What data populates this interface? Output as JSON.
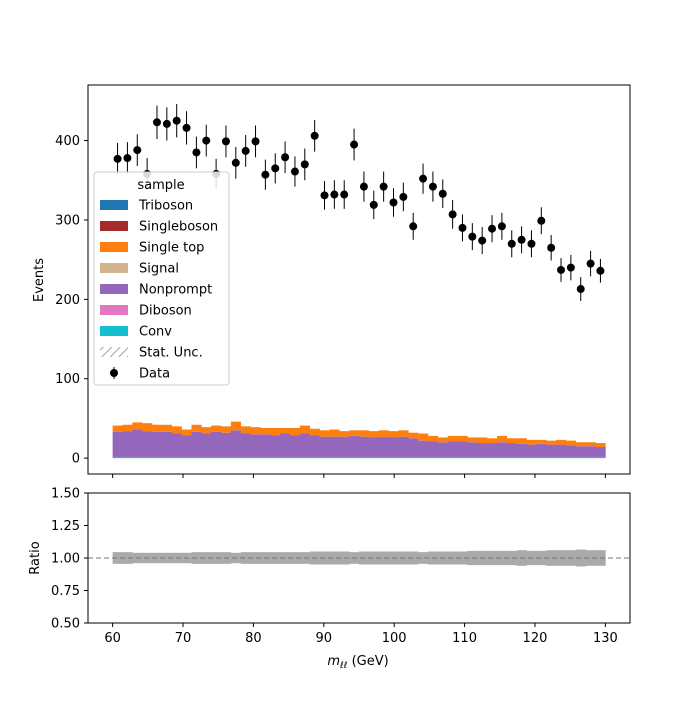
{
  "chart_data": {
    "type": "bar",
    "x_label_text": "(GeV)",
    "ylabel": "Events",
    "ratio_ylabel": "Ratio",
    "xlim": [
      56.5,
      133.5
    ],
    "ylim": [
      -20,
      470
    ],
    "ratio_ylim": [
      0.5,
      1.5
    ],
    "x_ticks": [
      "60",
      "70",
      "80",
      "90",
      "100",
      "110",
      "120",
      "130"
    ],
    "y_ticks": [
      "0",
      "100",
      "200",
      "300",
      "400"
    ],
    "ratio_y_ticks": [
      "0.50",
      "0.75",
      "1.00",
      "1.25",
      "1.50"
    ],
    "legend": {
      "title": "sample",
      "placement": "upper-left",
      "entries": [
        {
          "label": "Triboson",
          "color": "#1f77b4",
          "kind": "patch"
        },
        {
          "label": "Singleboson",
          "color": "#a52a2a",
          "kind": "patch"
        },
        {
          "label": "Single top",
          "color": "#ff7f0e",
          "kind": "patch"
        },
        {
          "label": "Signal",
          "color": "#d2b48c",
          "kind": "patch"
        },
        {
          "label": "Nonprompt",
          "color": "#9467bd",
          "kind": "patch"
        },
        {
          "label": "Diboson",
          "color": "#e377c2",
          "kind": "patch"
        },
        {
          "label": "Conv",
          "color": "#17becf",
          "kind": "patch"
        },
        {
          "label": "Stat. Unc.",
          "color": "#888888",
          "kind": "hatch"
        },
        {
          "label": "Data",
          "color": "#000000",
          "kind": "errorbar"
        }
      ]
    },
    "bin_edges_start": 60,
    "bin_width": 1.4,
    "bin_count": 50,
    "mc_nonprompt": [
      33,
      34,
      36,
      34,
      33,
      33,
      31,
      29,
      33,
      31,
      33,
      32,
      35,
      31,
      30,
      30,
      29,
      31,
      29,
      31,
      29,
      27,
      27,
      27,
      28,
      27,
      26,
      27,
      26,
      27,
      25,
      22,
      21,
      20,
      21,
      21,
      20,
      19,
      19,
      20,
      19,
      18,
      17,
      18,
      17,
      17,
      16,
      15,
      15,
      14
    ],
    "mc_singletop": [
      8,
      8,
      9,
      10,
      9,
      9,
      9,
      7,
      9,
      8,
      8,
      8,
      11,
      9,
      9,
      8,
      9,
      7,
      9,
      10,
      8,
      8,
      9,
      7,
      7,
      8,
      8,
      8,
      8,
      8,
      7,
      9,
      7,
      6,
      7,
      7,
      6,
      7,
      6,
      8,
      6,
      7,
      6,
      5,
      5,
      6,
      6,
      5,
      5,
      5
    ],
    "data": [
      377,
      378,
      388,
      358,
      423,
      421,
      425,
      416,
      385,
      400,
      358,
      399,
      372,
      387,
      399,
      357,
      365,
      379,
      361,
      370,
      406,
      331,
      332,
      332,
      395,
      342,
      319,
      342,
      322,
      329,
      292,
      352,
      342,
      333,
      307,
      290,
      279,
      274,
      289,
      292,
      270,
      275,
      270,
      299,
      265,
      237,
      240,
      213,
      245,
      236
    ],
    "data_errors": [
      20,
      20,
      20,
      20,
      21,
      21,
      21,
      21,
      20,
      20,
      19,
      20,
      20,
      20,
      20,
      19,
      19,
      20,
      19,
      20,
      20,
      18,
      18,
      18,
      20,
      19,
      18,
      19,
      18,
      18,
      17,
      19,
      19,
      18,
      18,
      17,
      17,
      17,
      17,
      17,
      17,
      17,
      17,
      17,
      16,
      15,
      16,
      15,
      16,
      15
    ],
    "ratio_unc": [
      0.045,
      0.045,
      0.04,
      0.04,
      0.04,
      0.04,
      0.04,
      0.04,
      0.045,
      0.045,
      0.045,
      0.045,
      0.04,
      0.045,
      0.045,
      0.045,
      0.045,
      0.045,
      0.045,
      0.045,
      0.05,
      0.05,
      0.05,
      0.05,
      0.045,
      0.05,
      0.05,
      0.05,
      0.05,
      0.05,
      0.05,
      0.045,
      0.05,
      0.05,
      0.05,
      0.05,
      0.055,
      0.055,
      0.055,
      0.055,
      0.055,
      0.06,
      0.055,
      0.055,
      0.06,
      0.06,
      0.06,
      0.065,
      0.06,
      0.06
    ]
  }
}
